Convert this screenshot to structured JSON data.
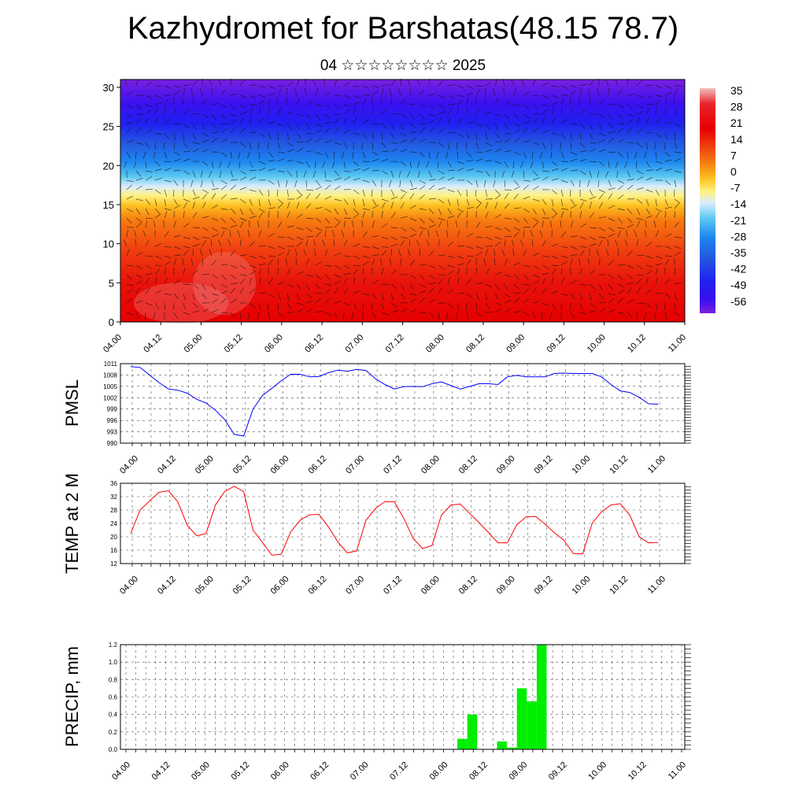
{
  "title": "Kazhydromet for Barshatas(48.15 78.7)",
  "subtitle": "04 ☆☆☆☆☆☆☆☆ 2025",
  "chart_data": [
    {
      "type": "heatmap",
      "title": "",
      "xlabel": "",
      "ylabel": "",
      "x_tick_labels": [
        "04.00",
        "04.12",
        "05.00",
        "05.12",
        "06.00",
        "06.12",
        "07.00",
        "07.12",
        "08.00",
        "08.12",
        "09.00",
        "09.12",
        "10.00",
        "10.12",
        "11.00"
      ],
      "y_ticks": [
        0,
        5,
        10,
        15,
        20,
        25,
        30
      ],
      "ylim": [
        0,
        31
      ],
      "colorbar": {
        "labels": [
          "35",
          "28",
          "21",
          "14",
          "7",
          "0",
          "-7",
          "-14",
          "-21",
          "-28",
          "-35",
          "-42",
          "-49",
          "-56"
        ],
        "colors": [
          "#f2bfc0",
          "#e8242a",
          "#e60000",
          "#f04010",
          "#f77b10",
          "#fcc020",
          "#fff280",
          "#d9ecff",
          "#5ac8f0",
          "#1e88f0",
          "#2255e0",
          "#2020f0",
          "#3a10f0",
          "#7a20e0"
        ]
      },
      "field_description_profile": [
        {
          "height": 0,
          "value": 32
        },
        {
          "height": 5,
          "value": 24
        },
        {
          "height": 10,
          "value": 14
        },
        {
          "height": 15,
          "value": 0
        },
        {
          "height": 17,
          "value": -12
        },
        {
          "height": 20,
          "value": -30
        },
        {
          "height": 25,
          "value": -52
        },
        {
          "height": 31,
          "value": -42
        }
      ],
      "grid": false
    },
    {
      "type": "line",
      "ylabel": "PMSL",
      "ylim": [
        990,
        1011
      ],
      "y_ticks": [
        990,
        993,
        996,
        999,
        1002,
        1005,
        1008,
        1011
      ],
      "x_tick_labels": [
        "04.00",
        "04.12",
        "05.00",
        "05.12",
        "06.00",
        "06.12",
        "07.00",
        "07.12",
        "08.00",
        "08.12",
        "09.00",
        "09.12",
        "10.00",
        "10.12",
        "11.00"
      ],
      "color": "#0000ff",
      "series": [
        {
          "values": [
            1010.2,
            1010.0,
            1008.0,
            1006.0,
            1004.3,
            1004.0,
            1003.2,
            1001.6,
            1000.6,
            998.7,
            996.2,
            992.3,
            991.9,
            999.0,
            1002.6,
            1004.5,
            1006.5,
            1008.2,
            1008.2,
            1007.5,
            1007.6,
            1008.6,
            1009.3,
            1009.0,
            1009.5,
            1009.2,
            1007.0,
            1005.5,
            1004.3,
            1004.9,
            1005.0,
            1004.9,
            1005.7,
            1006.2,
            1005.2,
            1004.3,
            1005.0,
            1005.7,
            1005.7,
            1005.5,
            1007.5,
            1007.9,
            1007.5,
            1007.5,
            1007.5,
            1008.4,
            1008.5,
            1008.4,
            1008.4,
            1008.4,
            1007.5,
            1005.5,
            1003.8,
            1003.4,
            1002.1,
            1000.4,
            1000.3
          ]
        }
      ],
      "grid": true
    },
    {
      "type": "line",
      "ylabel": "TEMP at 2 M",
      "ylim": [
        12,
        36
      ],
      "y_ticks": [
        12,
        16,
        20,
        24,
        28,
        32,
        36
      ],
      "x_tick_labels": [
        "04.00",
        "04.12",
        "05.00",
        "05.12",
        "06.00",
        "06.12",
        "07.00",
        "07.12",
        "08.00",
        "08.12",
        "09.00",
        "09.12",
        "10.00",
        "10.12",
        "11.00"
      ],
      "color": "#ff0000",
      "series": [
        {
          "values": [
            21.0,
            28.0,
            30.7,
            33.3,
            33.8,
            30.5,
            23.5,
            20.3,
            21.0,
            29.5,
            33.6,
            35.1,
            33.5,
            22.0,
            18.3,
            14.5,
            14.8,
            21.5,
            25.0,
            26.6,
            26.7,
            23.0,
            18.5,
            15.2,
            15.8,
            25.0,
            28.5,
            30.5,
            30.5,
            25.5,
            19.5,
            16.5,
            17.4,
            26.5,
            29.5,
            29.8,
            27.0,
            24.2,
            21.3,
            18.2,
            18.2,
            23.6,
            26.0,
            26.1,
            23.8,
            21.2,
            19.0,
            15.0,
            14.9,
            24.0,
            27.5,
            29.5,
            29.9,
            26.5,
            20.0,
            18.2,
            18.3
          ]
        }
      ],
      "grid": true
    },
    {
      "type": "bar",
      "ylabel": "PRECIP, mm",
      "ylim": [
        0,
        1.2
      ],
      "y_ticks": [
        0.0,
        0.2,
        0.4,
        0.6,
        0.8,
        1.0,
        1.2
      ],
      "x_tick_labels": [
        "04.00",
        "04.12",
        "05.00",
        "05.12",
        "06.00",
        "06.12",
        "07.00",
        "07.12",
        "08.00",
        "08.12",
        "09.00",
        "09.12",
        "10.00",
        "10.12",
        "11.00"
      ],
      "color": "#00ee00",
      "bars": [
        {
          "x_hours": 102,
          "value": 0.12
        },
        {
          "x_hours": 105,
          "value": 0.4
        },
        {
          "x_hours": 114,
          "value": 0.09
        },
        {
          "x_hours": 117,
          "value": 0.02
        },
        {
          "x_hours": 120,
          "value": 0.7
        },
        {
          "x_hours": 123,
          "value": 0.55
        },
        {
          "x_hours": 126,
          "value": 1.2
        }
      ],
      "grid": true
    }
  ]
}
